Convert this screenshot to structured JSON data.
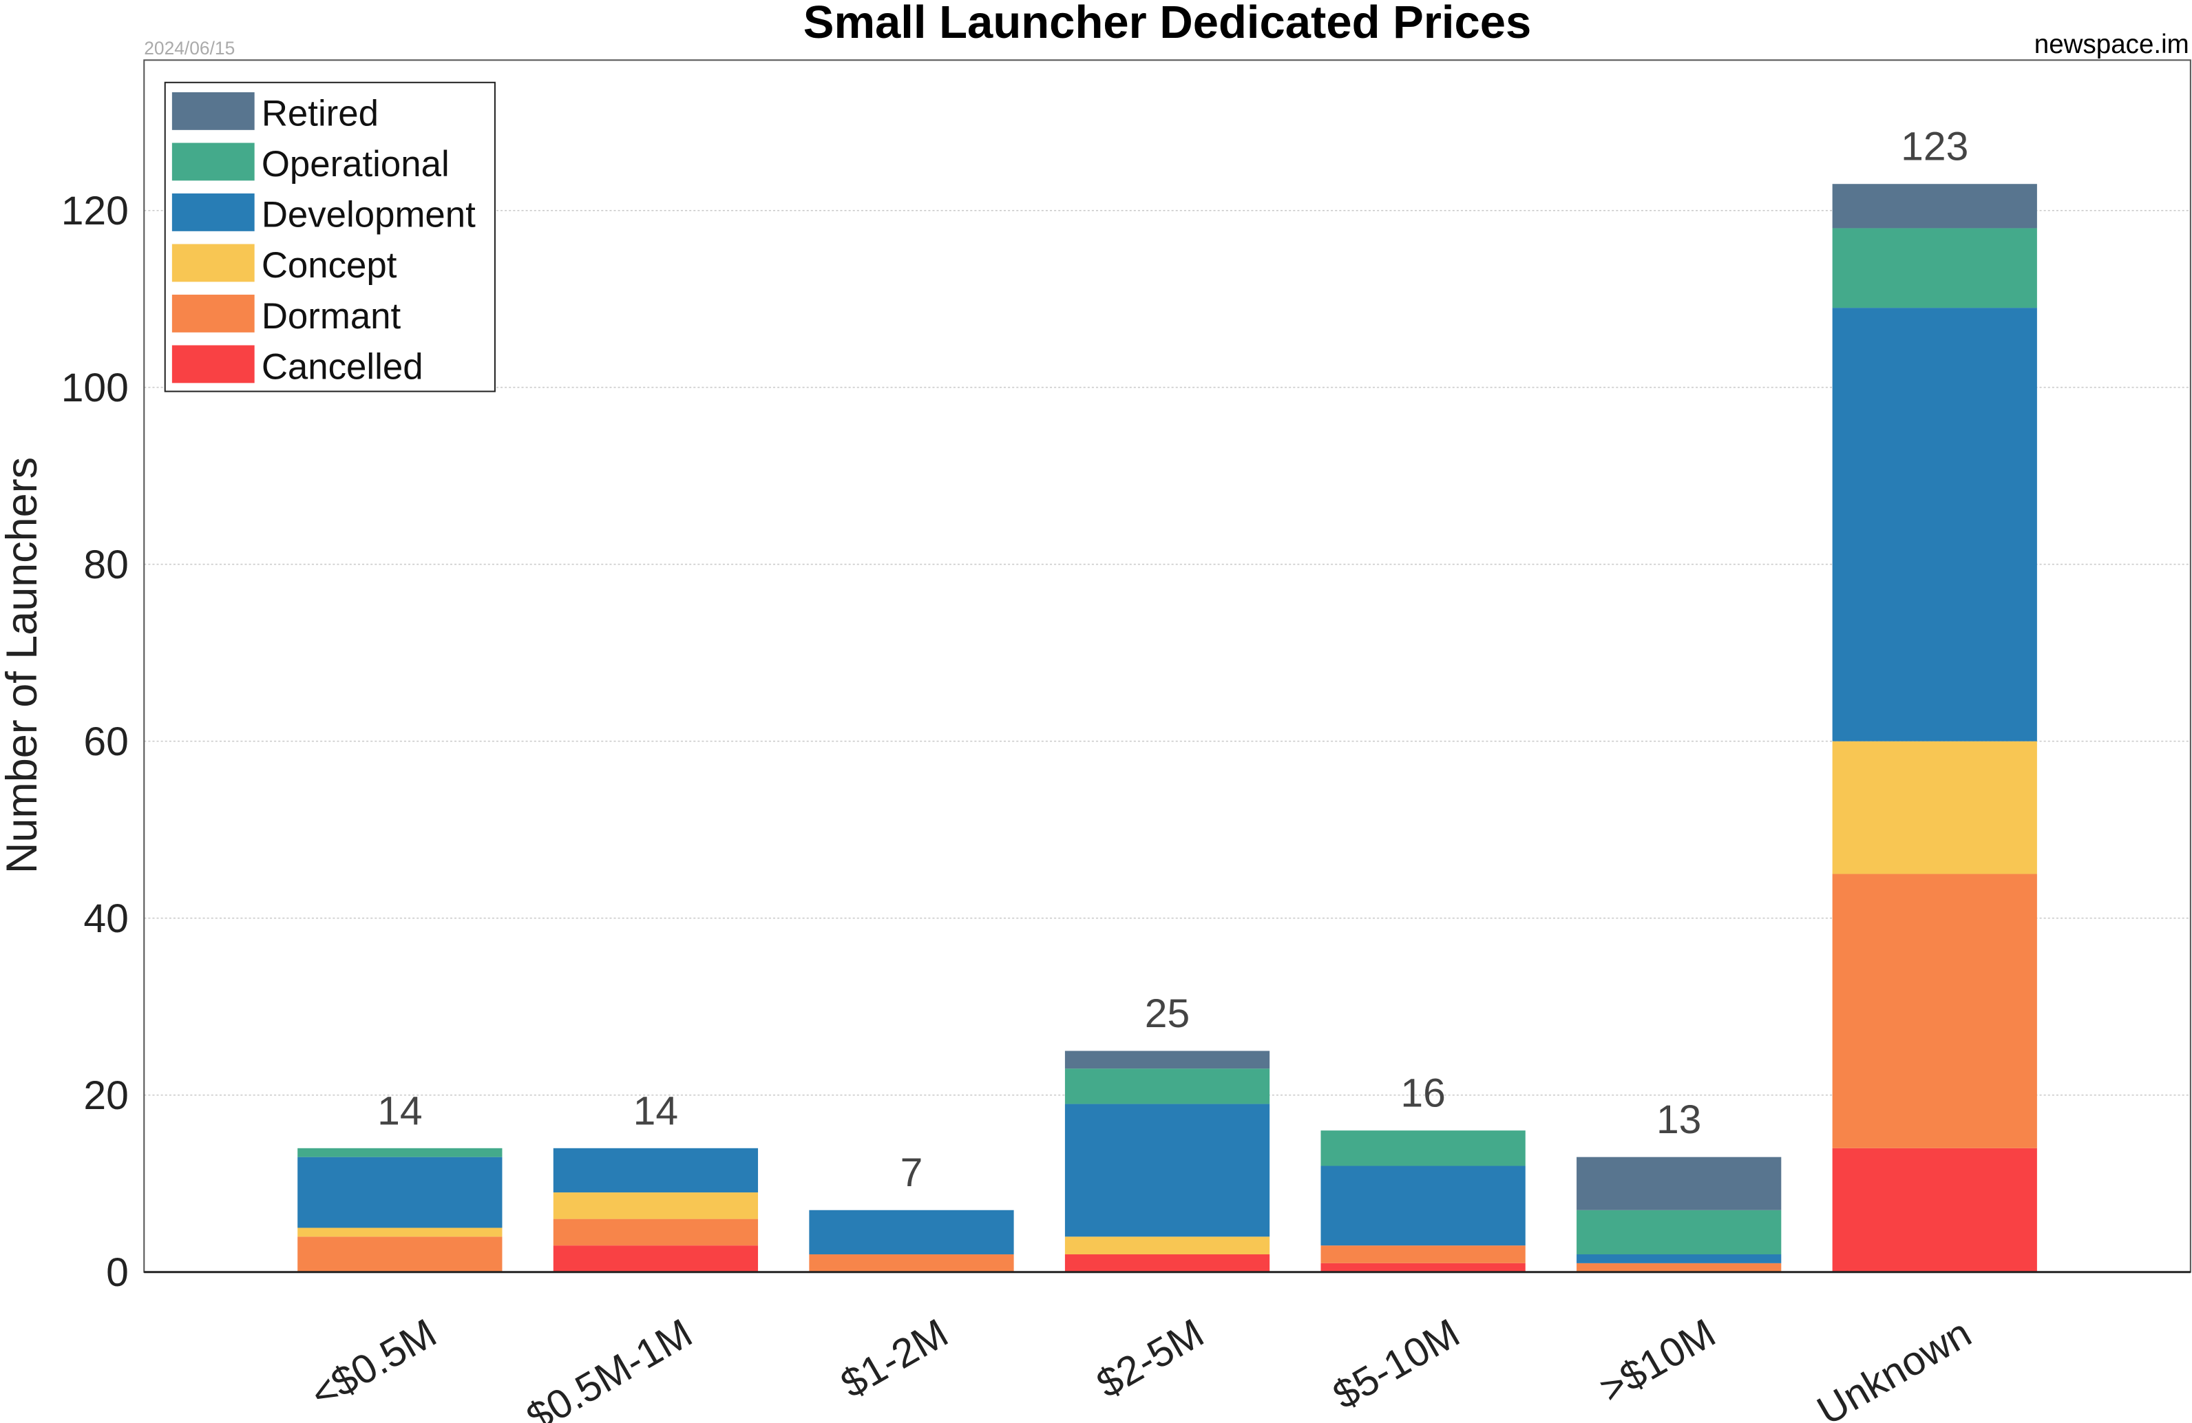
{
  "chart_data": {
    "type": "bar",
    "stacked": true,
    "title": "Small Launcher Dedicated Prices",
    "date": "2024/06/15",
    "source": "newspace.im",
    "xlabel": "",
    "ylabel": "Number of Launchers",
    "ylim": [
      0,
      137
    ],
    "yticks": [
      0,
      20,
      40,
      60,
      80,
      100,
      120
    ],
    "grid": "horizontal dotted",
    "legend_position": "top-left",
    "categories": [
      "<$0.5M",
      "$0.5M-1M",
      "$1-2M",
      "$2-5M",
      "$5-10M",
      ">$10M",
      "Unknown"
    ],
    "series": [
      {
        "name": "Cancelled",
        "color": "#F94144",
        "values": [
          0,
          3,
          0,
          2,
          1,
          0,
          14
        ]
      },
      {
        "name": "Dormant",
        "color": "#F7854A",
        "values": [
          4,
          3,
          2,
          0,
          2,
          1,
          31
        ]
      },
      {
        "name": "Concept",
        "color": "#F8C653",
        "values": [
          1,
          3,
          0,
          2,
          0,
          0,
          15
        ]
      },
      {
        "name": "Development",
        "color": "#287DB5",
        "values": [
          8,
          5,
          5,
          15,
          9,
          1,
          49
        ]
      },
      {
        "name": "Operational",
        "color": "#44AA8B",
        "values": [
          1,
          0,
          0,
          4,
          4,
          5,
          9
        ]
      },
      {
        "name": "Retired",
        "color": "#58758F",
        "values": [
          0,
          0,
          0,
          2,
          0,
          6,
          5
        ]
      }
    ],
    "totals": [
      "14",
      "14",
      "7",
      "25",
      "16",
      "13",
      "123"
    ]
  }
}
